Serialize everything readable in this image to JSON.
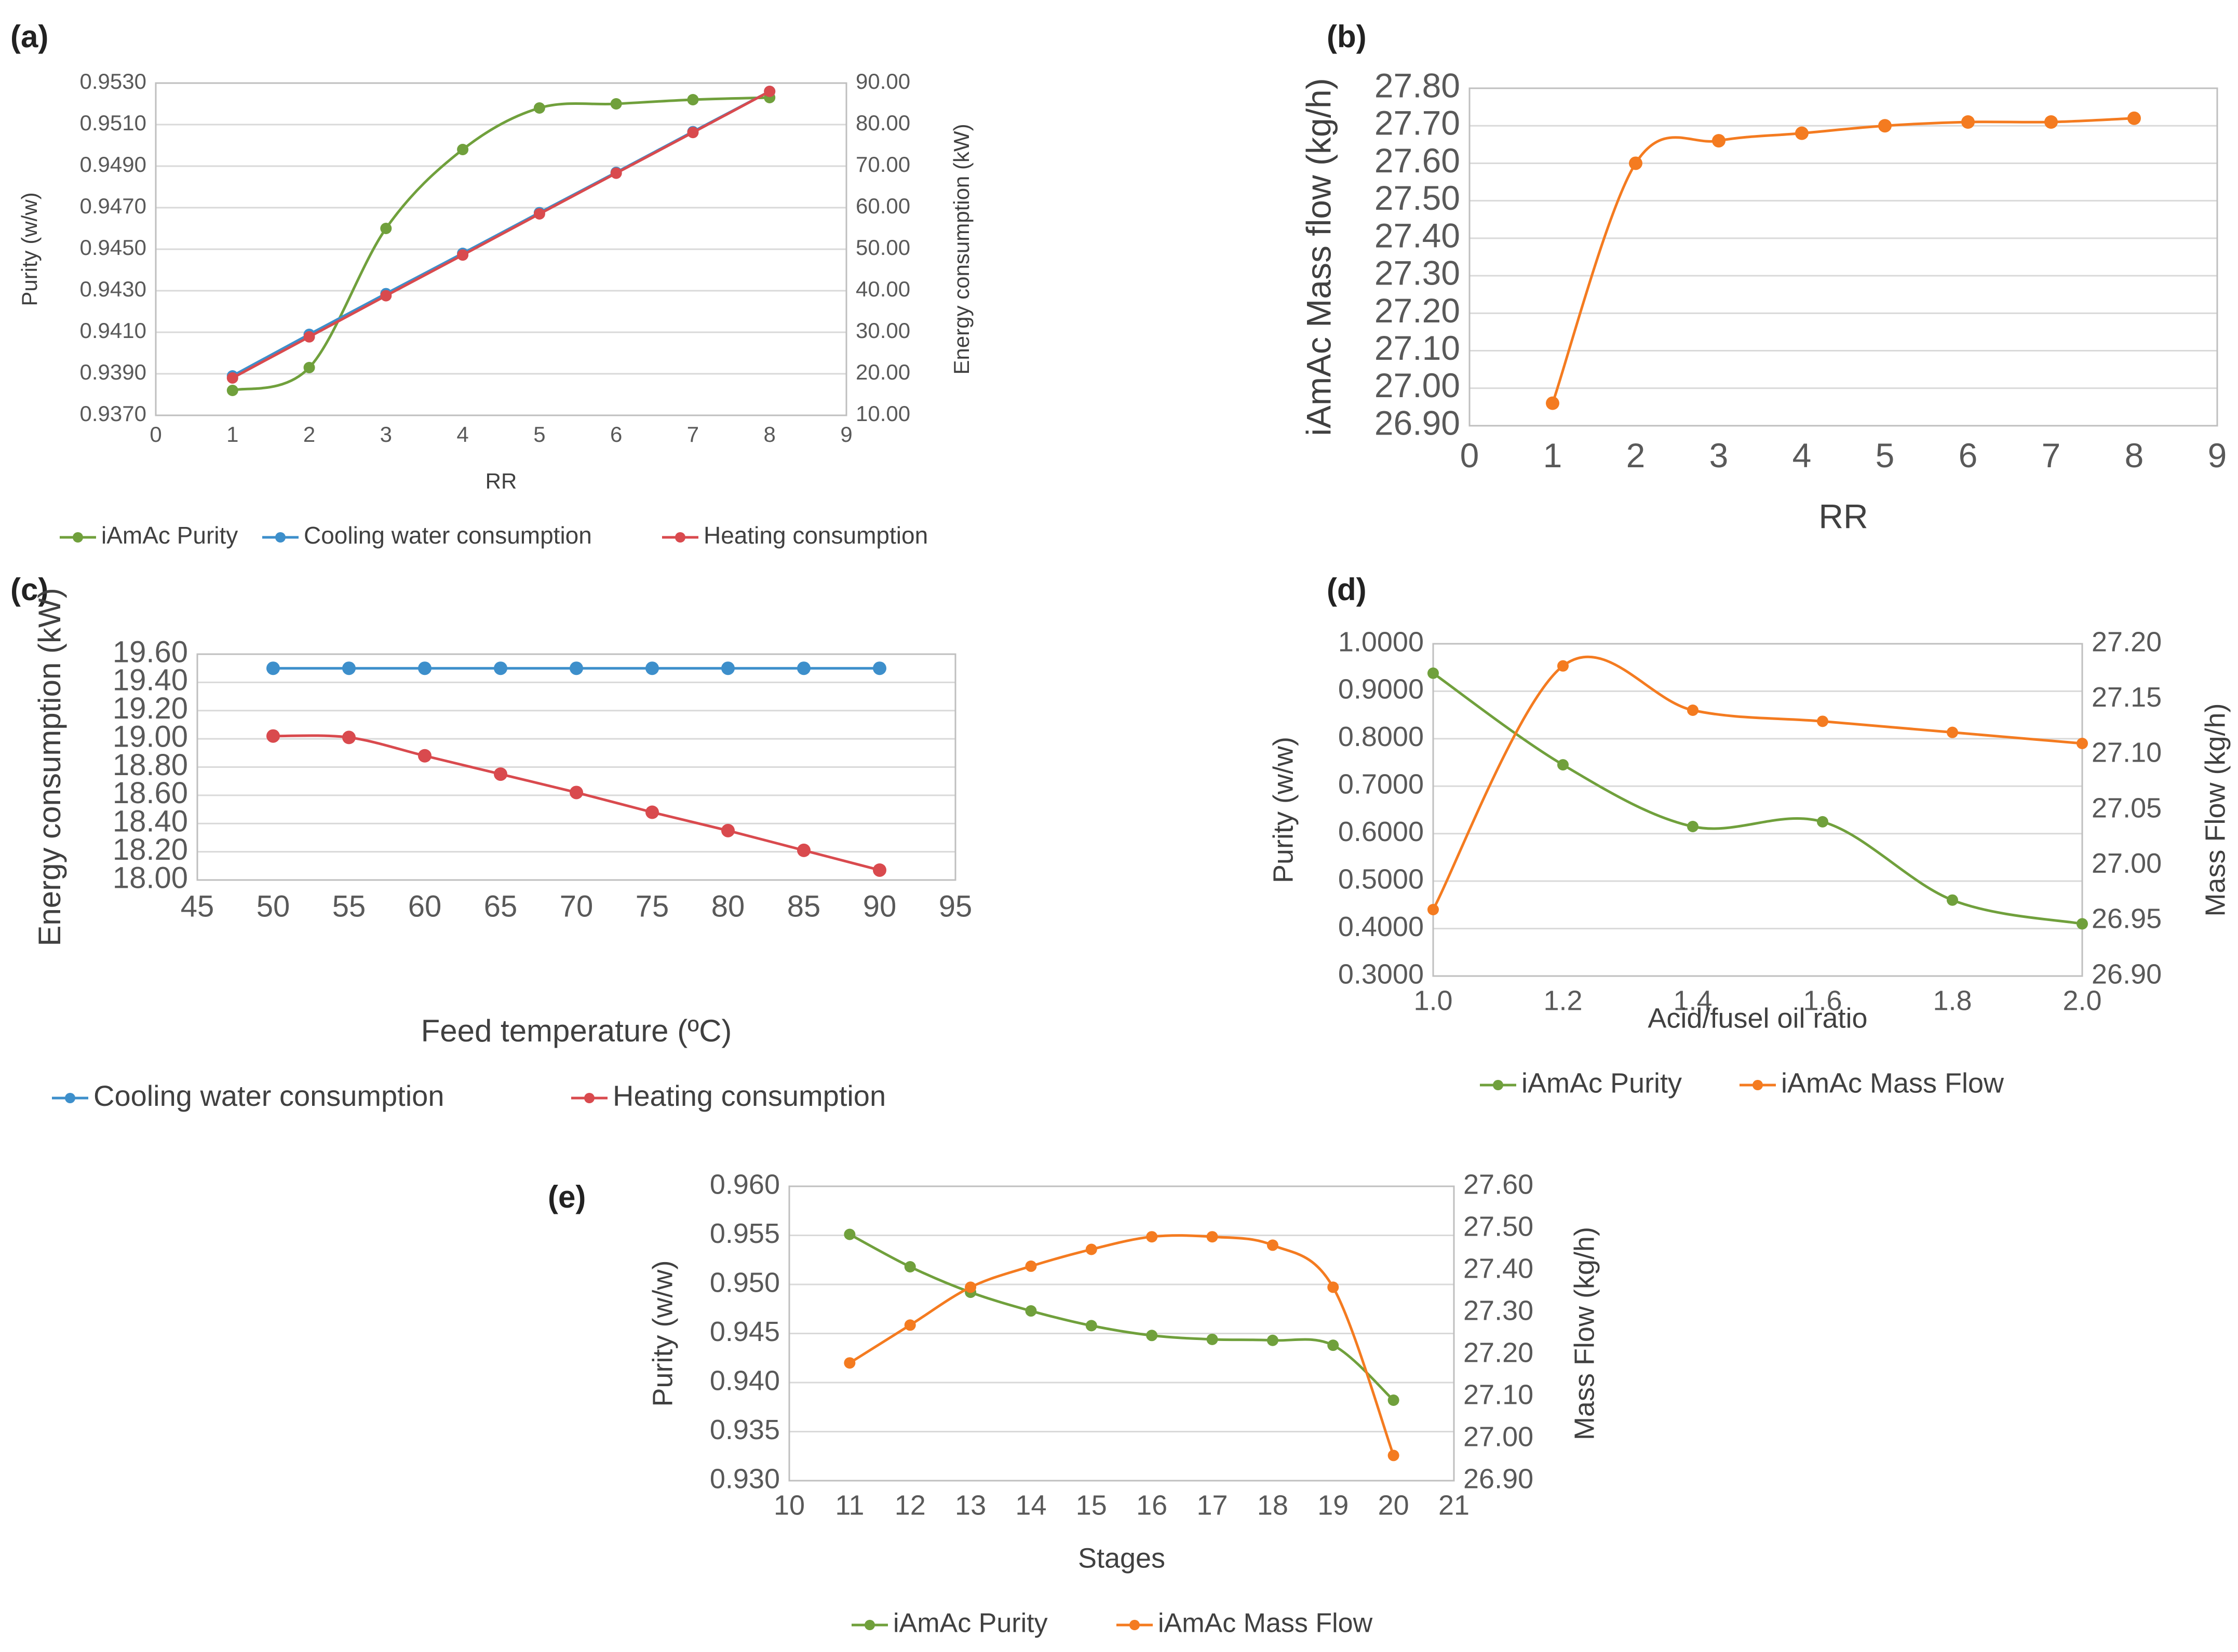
{
  "figure": {
    "panels": [
      "(a)",
      "(b)",
      "(c)",
      "(d)",
      "(e)"
    ]
  },
  "colors": {
    "green": "#70a03c",
    "blue": "#3d8fcb",
    "red": "#d94a4e",
    "orange": "#f47b20",
    "grid": "#d9d9d9",
    "frame": "#bfbfbf"
  },
  "chart_data": [
    {
      "id": "a",
      "type": "line",
      "label": "(a)",
      "xlabel": "RR",
      "ylabel": "Purity (w/w)",
      "y2label": "Energy consumption (kW)",
      "xlim": [
        0,
        9
      ],
      "xticks": [
        "0",
        "1",
        "2",
        "3",
        "4",
        "5",
        "6",
        "7",
        "8",
        "9"
      ],
      "ylim": [
        0.937,
        0.953
      ],
      "yticks": [
        "0.9370",
        "0.9390",
        "0.9410",
        "0.9430",
        "0.9450",
        "0.9470",
        "0.9490",
        "0.9510",
        "0.9530"
      ],
      "y2lim": [
        10,
        90
      ],
      "y2ticks": [
        "10.00",
        "20.00",
        "30.00",
        "40.00",
        "50.00",
        "60.00",
        "70.00",
        "80.00",
        "90.00"
      ],
      "series": [
        {
          "name": "iAmAc Purity",
          "axis": "left",
          "color": "green",
          "x": [
            1,
            2,
            3,
            4,
            5,
            6,
            7,
            8
          ],
          "values": [
            0.9382,
            0.9393,
            0.946,
            0.9498,
            0.9518,
            0.952,
            0.9522,
            0.9523
          ]
        },
        {
          "name": "Cooling water consumption",
          "axis": "right",
          "color": "blue",
          "x": [
            1,
            2,
            3,
            4,
            5,
            6,
            7,
            8
          ],
          "values": [
            19.5,
            29.5,
            39.3,
            49.0,
            58.8,
            68.5,
            78.3,
            88.0
          ]
        },
        {
          "name": "Heating consumption",
          "axis": "right",
          "color": "red",
          "x": [
            1,
            2,
            3,
            4,
            5,
            6,
            7,
            8
          ],
          "values": [
            19.0,
            28.9,
            38.8,
            48.6,
            58.5,
            68.3,
            78.1,
            88.0
          ]
        }
      ]
    },
    {
      "id": "b",
      "type": "line",
      "label": "(b)",
      "xlabel": "RR",
      "ylabel": "iAmAc Mass flow (kg/h)",
      "xlim": [
        0,
        9
      ],
      "xticks": [
        "0",
        "1",
        "2",
        "3",
        "4",
        "5",
        "6",
        "7",
        "8",
        "9"
      ],
      "ylim": [
        26.9,
        27.8
      ],
      "yticks": [
        "26.90",
        "27.00",
        "27.10",
        "27.20",
        "27.30",
        "27.40",
        "27.50",
        "27.60",
        "27.70",
        "27.80"
      ],
      "series": [
        {
          "name": "iAmAc Mass flow",
          "axis": "left",
          "color": "orange",
          "x": [
            1,
            2,
            3,
            4,
            5,
            6,
            7,
            8
          ],
          "values": [
            26.96,
            27.6,
            27.66,
            27.68,
            27.7,
            27.71,
            27.71,
            27.72
          ]
        }
      ]
    },
    {
      "id": "c",
      "type": "line",
      "label": "(c)",
      "xlabel": "Feed temperature (ºC)",
      "ylabel": "Energy consumption (kW)",
      "xlim": [
        45,
        95
      ],
      "xticks": [
        "45",
        "50",
        "55",
        "60",
        "65",
        "70",
        "75",
        "80",
        "85",
        "90",
        "95"
      ],
      "ylim": [
        18.0,
        19.6
      ],
      "yticks": [
        "18.00",
        "18.20",
        "18.40",
        "18.60",
        "18.80",
        "19.00",
        "19.20",
        "19.40",
        "19.60"
      ],
      "series": [
        {
          "name": "Cooling water consumption",
          "axis": "left",
          "color": "blue",
          "x": [
            50,
            55,
            60,
            65,
            70,
            75,
            80,
            85,
            90
          ],
          "values": [
            19.5,
            19.5,
            19.5,
            19.5,
            19.5,
            19.5,
            19.5,
            19.5,
            19.5
          ]
        },
        {
          "name": "Heating consumption",
          "axis": "left",
          "color": "red",
          "x": [
            50,
            55,
            60,
            65,
            70,
            75,
            80,
            85,
            90
          ],
          "values": [
            19.02,
            19.01,
            18.88,
            18.75,
            18.62,
            18.48,
            18.35,
            18.21,
            18.07
          ]
        }
      ]
    },
    {
      "id": "d",
      "type": "line",
      "label": "(d)",
      "xlabel": "Acid/fusel oil ratio",
      "ylabel": "Purity (w/w)",
      "y2label": "Mass Flow (kg/h)",
      "xlim": [
        1.0,
        2.0
      ],
      "xticks": [
        "1.0",
        "1.2",
        "1.4",
        "1.6",
        "1.8",
        "2.0"
      ],
      "ylim": [
        0.3,
        1.0
      ],
      "yticks": [
        "0.3000",
        "0.4000",
        "0.5000",
        "0.6000",
        "0.7000",
        "0.8000",
        "0.9000",
        "1.0000"
      ],
      "y2lim": [
        26.9,
        27.2
      ],
      "y2ticks": [
        "26.90",
        "26.95",
        "27.00",
        "27.05",
        "27.10",
        "27.15",
        "27.20"
      ],
      "series": [
        {
          "name": "iAmAc Purity",
          "axis": "left",
          "color": "green",
          "x": [
            1.0,
            1.2,
            1.4,
            1.6,
            1.8,
            2.0
          ],
          "values": [
            0.938,
            0.745,
            0.615,
            0.625,
            0.46,
            0.41
          ]
        },
        {
          "name": "iAmAc Mass Flow",
          "axis": "right",
          "color": "orange",
          "x": [
            1.0,
            1.2,
            1.4,
            1.6,
            1.8,
            2.0
          ],
          "values": [
            26.96,
            27.18,
            27.14,
            27.13,
            27.12,
            27.11
          ]
        }
      ]
    },
    {
      "id": "e",
      "type": "line",
      "label": "(e)",
      "xlabel": "Stages",
      "ylabel": "Purity (w/w)",
      "y2label": "Mass Flow (kg/h)",
      "xlim": [
        10,
        21
      ],
      "xticks": [
        "10",
        "11",
        "12",
        "13",
        "14",
        "15",
        "16",
        "17",
        "18",
        "19",
        "20",
        "21"
      ],
      "ylim": [
        0.93,
        0.96
      ],
      "yticks": [
        "0.930",
        "0.935",
        "0.940",
        "0.945",
        "0.950",
        "0.955",
        "0.960"
      ],
      "y2lim": [
        26.9,
        27.6
      ],
      "y2ticks": [
        "26.90",
        "27.00",
        "27.10",
        "27.20",
        "27.30",
        "27.40",
        "27.50",
        "27.60"
      ],
      "series": [
        {
          "name": "iAmAc Purity",
          "axis": "left",
          "color": "green",
          "x": [
            11,
            12,
            13,
            14,
            15,
            16,
            17,
            18,
            19,
            20
          ],
          "values": [
            0.9551,
            0.9518,
            0.9492,
            0.9473,
            0.9458,
            0.9448,
            0.9444,
            0.9443,
            0.9438,
            0.9382
          ]
        },
        {
          "name": "iAmAc Mass Flow",
          "axis": "right",
          "color": "orange",
          "x": [
            11,
            12,
            13,
            14,
            15,
            16,
            17,
            18,
            19,
            20
          ],
          "values": [
            27.18,
            27.27,
            27.36,
            27.41,
            27.45,
            27.48,
            27.48,
            27.46,
            27.36,
            26.96
          ]
        }
      ]
    }
  ]
}
